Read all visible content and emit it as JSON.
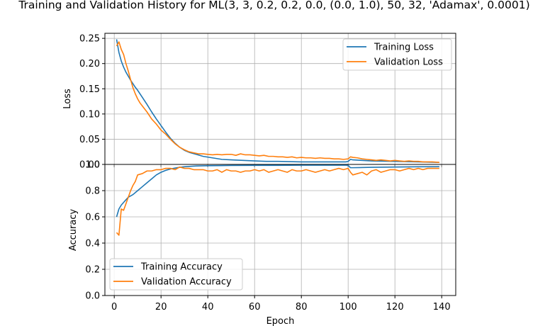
{
  "chart_data": [
    {
      "type": "line",
      "title": "Training and Validation History for ML(3, 3, 0.2, 0.2, 0.0, (0.0, 1.0), 50, 32, 'Adamax', 0.0001)",
      "xlabel": "",
      "ylabel": "Loss",
      "xlim": [
        -4,
        146
      ],
      "ylim": [
        0,
        0.26
      ],
      "xticks": [
        0,
        20,
        40,
        60,
        80,
        100,
        120,
        140
      ],
      "yticks": [
        0.0,
        0.05,
        0.1,
        0.15,
        0.2,
        0.25
      ],
      "ytick_labels": [
        "0.00",
        "0.05",
        "0.10",
        "0.15",
        "0.20",
        "0.25"
      ],
      "grid": true,
      "legend_position": "upper-right",
      "series": [
        {
          "name": "Training Loss",
          "color": "#1f77b4",
          "x": [
            1,
            2,
            3,
            4,
            5,
            6,
            7,
            8,
            9,
            10,
            12,
            14,
            16,
            18,
            20,
            22,
            24,
            26,
            28,
            30,
            32,
            35,
            38,
            42,
            46,
            50,
            55,
            60,
            65,
            70,
            80,
            90,
            99,
            100,
            101,
            102,
            110,
            120,
            130,
            139
          ],
          "values": [
            0.248,
            0.222,
            0.205,
            0.193,
            0.183,
            0.175,
            0.167,
            0.16,
            0.153,
            0.147,
            0.133,
            0.119,
            0.104,
            0.09,
            0.077,
            0.064,
            0.052,
            0.042,
            0.034,
            0.028,
            0.024,
            0.02,
            0.016,
            0.013,
            0.01,
            0.009,
            0.008,
            0.007,
            0.006,
            0.006,
            0.005,
            0.005,
            0.005,
            0.006,
            0.01,
            0.009,
            0.007,
            0.006,
            0.005,
            0.004
          ]
        },
        {
          "name": "Validation Loss",
          "color": "#ff7f0e",
          "x": [
            1,
            2,
            3,
            4,
            5,
            6,
            7,
            8,
            9,
            10,
            11,
            12,
            14,
            16,
            18,
            20,
            22,
            24,
            26,
            28,
            30,
            32,
            34,
            36,
            38,
            40,
            42,
            44,
            46,
            48,
            50,
            52,
            54,
            56,
            58,
            60,
            62,
            64,
            66,
            68,
            70,
            72,
            74,
            76,
            78,
            80,
            82,
            84,
            86,
            88,
            90,
            92,
            94,
            96,
            98,
            100,
            101,
            102,
            104,
            106,
            108,
            110,
            112,
            114,
            116,
            118,
            120,
            122,
            124,
            126,
            128,
            130,
            132,
            134,
            136,
            139
          ],
          "values": [
            0.235,
            0.243,
            0.228,
            0.218,
            0.2,
            0.185,
            0.168,
            0.152,
            0.14,
            0.13,
            0.122,
            0.116,
            0.104,
            0.09,
            0.08,
            0.068,
            0.06,
            0.05,
            0.041,
            0.034,
            0.029,
            0.025,
            0.023,
            0.021,
            0.021,
            0.02,
            0.019,
            0.02,
            0.019,
            0.02,
            0.02,
            0.018,
            0.021,
            0.019,
            0.019,
            0.018,
            0.017,
            0.018,
            0.016,
            0.016,
            0.015,
            0.015,
            0.014,
            0.015,
            0.013,
            0.014,
            0.013,
            0.013,
            0.012,
            0.013,
            0.012,
            0.012,
            0.011,
            0.011,
            0.01,
            0.011,
            0.015,
            0.014,
            0.013,
            0.011,
            0.01,
            0.009,
            0.008,
            0.009,
            0.008,
            0.007,
            0.008,
            0.007,
            0.006,
            0.007,
            0.006,
            0.006,
            0.005,
            0.005,
            0.005,
            0.004
          ]
        }
      ]
    },
    {
      "type": "line",
      "title": "",
      "xlabel": "Epoch",
      "ylabel": "Accuracy",
      "xlim": [
        -4,
        146
      ],
      "ylim": [
        0,
        1.0
      ],
      "xticks": [
        0,
        20,
        40,
        60,
        80,
        100,
        120,
        140
      ],
      "xtick_labels": [
        "0",
        "20",
        "40",
        "60",
        "80",
        "100",
        "120",
        "140"
      ],
      "yticks": [
        0.0,
        0.2,
        0.4,
        0.6,
        0.8,
        1.0
      ],
      "ytick_labels": [
        "0.0",
        "0.2",
        "0.4",
        "0.6",
        "0.8",
        "1.0"
      ],
      "grid": true,
      "legend_position": "lower-left",
      "series": [
        {
          "name": "Training Accuracy",
          "color": "#1f77b4",
          "x": [
            1,
            2,
            3,
            4,
            5,
            6,
            7,
            8,
            10,
            12,
            14,
            16,
            18,
            20,
            22,
            24,
            26,
            28,
            30,
            32,
            35,
            40,
            45,
            50,
            60,
            70,
            80,
            90,
            98,
            99,
            100,
            101,
            102,
            110,
            120,
            130,
            139
          ],
          "values": [
            0.6,
            0.66,
            0.69,
            0.71,
            0.73,
            0.75,
            0.76,
            0.77,
            0.8,
            0.83,
            0.86,
            0.89,
            0.92,
            0.94,
            0.955,
            0.965,
            0.972,
            0.978,
            0.982,
            0.985,
            0.988,
            0.99,
            0.991,
            0.992,
            0.993,
            0.993,
            0.994,
            0.994,
            0.994,
            0.994,
            0.993,
            0.975,
            0.975,
            0.978,
            0.98,
            0.982,
            0.983
          ]
        },
        {
          "name": "Validation Accuracy",
          "color": "#ff7f0e",
          "x": [
            1,
            2,
            3,
            4,
            5,
            6,
            7,
            8,
            9,
            10,
            12,
            14,
            16,
            18,
            20,
            22,
            24,
            26,
            28,
            30,
            32,
            34,
            36,
            38,
            40,
            42,
            44,
            46,
            48,
            50,
            52,
            54,
            56,
            58,
            60,
            62,
            64,
            66,
            68,
            70,
            72,
            74,
            76,
            78,
            80,
            82,
            84,
            86,
            88,
            90,
            92,
            94,
            96,
            98,
            100,
            101,
            102,
            104,
            106,
            108,
            110,
            112,
            114,
            116,
            118,
            120,
            122,
            124,
            126,
            128,
            130,
            132,
            134,
            136,
            139
          ],
          "values": [
            0.48,
            0.46,
            0.66,
            0.65,
            0.7,
            0.75,
            0.8,
            0.84,
            0.87,
            0.92,
            0.93,
            0.95,
            0.95,
            0.96,
            0.96,
            0.97,
            0.97,
            0.96,
            0.98,
            0.97,
            0.97,
            0.96,
            0.96,
            0.96,
            0.95,
            0.95,
            0.96,
            0.94,
            0.96,
            0.95,
            0.95,
            0.94,
            0.95,
            0.95,
            0.96,
            0.95,
            0.96,
            0.94,
            0.95,
            0.96,
            0.95,
            0.94,
            0.96,
            0.95,
            0.95,
            0.96,
            0.95,
            0.94,
            0.95,
            0.96,
            0.95,
            0.96,
            0.97,
            0.96,
            0.97,
            0.94,
            0.92,
            0.93,
            0.94,
            0.92,
            0.95,
            0.96,
            0.94,
            0.95,
            0.96,
            0.96,
            0.95,
            0.96,
            0.97,
            0.96,
            0.97,
            0.96,
            0.97,
            0.97,
            0.97
          ]
        }
      ]
    }
  ]
}
